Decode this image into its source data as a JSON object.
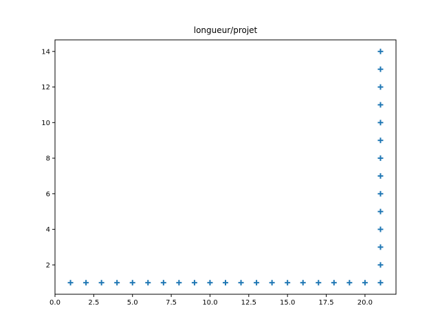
{
  "chart_data": {
    "type": "scatter",
    "title": "longueur/projet",
    "xlabel": "",
    "ylabel": "",
    "xlim": [
      0,
      22
    ],
    "ylim": [
      0.35,
      14.65
    ],
    "x_ticks": [
      "0.0",
      "2.5",
      "5.0",
      "7.5",
      "10.0",
      "12.5",
      "15.0",
      "17.5",
      "20.0"
    ],
    "y_ticks": [
      "2",
      "4",
      "6",
      "8",
      "10",
      "12",
      "14"
    ],
    "grid": false,
    "marker": "plus",
    "color": "#1f77b4",
    "points": [
      {
        "x": 1,
        "y": 1
      },
      {
        "x": 2,
        "y": 1
      },
      {
        "x": 3,
        "y": 1
      },
      {
        "x": 4,
        "y": 1
      },
      {
        "x": 5,
        "y": 1
      },
      {
        "x": 6,
        "y": 1
      },
      {
        "x": 7,
        "y": 1
      },
      {
        "x": 8,
        "y": 1
      },
      {
        "x": 9,
        "y": 1
      },
      {
        "x": 10,
        "y": 1
      },
      {
        "x": 11,
        "y": 1
      },
      {
        "x": 12,
        "y": 1
      },
      {
        "x": 13,
        "y": 1
      },
      {
        "x": 14,
        "y": 1
      },
      {
        "x": 15,
        "y": 1
      },
      {
        "x": 16,
        "y": 1
      },
      {
        "x": 17,
        "y": 1
      },
      {
        "x": 18,
        "y": 1
      },
      {
        "x": 19,
        "y": 1
      },
      {
        "x": 20,
        "y": 1
      },
      {
        "x": 21,
        "y": 1
      },
      {
        "x": 21,
        "y": 2
      },
      {
        "x": 21,
        "y": 3
      },
      {
        "x": 21,
        "y": 4
      },
      {
        "x": 21,
        "y": 5
      },
      {
        "x": 21,
        "y": 6
      },
      {
        "x": 21,
        "y": 7
      },
      {
        "x": 21,
        "y": 8
      },
      {
        "x": 21,
        "y": 9
      },
      {
        "x": 21,
        "y": 10
      },
      {
        "x": 21,
        "y": 11
      },
      {
        "x": 21,
        "y": 12
      },
      {
        "x": 21,
        "y": 13
      },
      {
        "x": 21,
        "y": 14
      }
    ]
  }
}
